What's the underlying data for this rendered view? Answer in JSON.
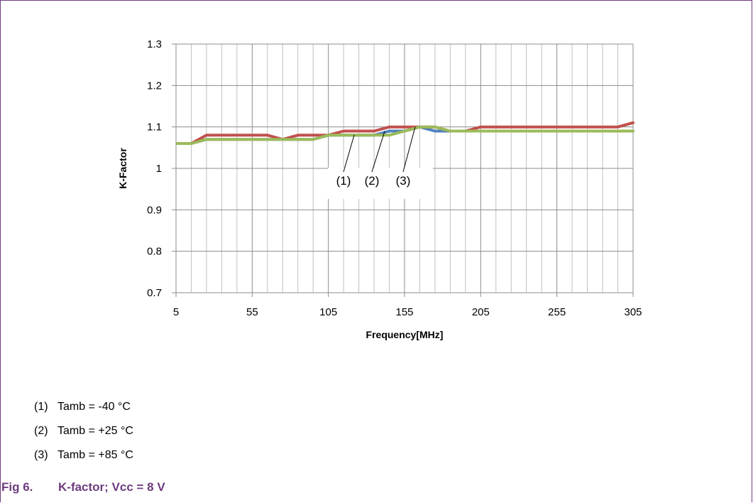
{
  "chart_data": {
    "type": "line",
    "xlabel": "Frequency[MHz]",
    "ylabel": "K-Factor",
    "xlim": [
      5,
      305
    ],
    "ylim": [
      0.7,
      1.3
    ],
    "xticks": [
      5,
      55,
      105,
      155,
      205,
      255,
      305
    ],
    "yticks": [
      0.7,
      0.8,
      0.9,
      1,
      1.1,
      1.2,
      1.3
    ],
    "x_minor_step": 10,
    "grid": true,
    "series": [
      {
        "name": "(1)",
        "color": "#4f81bd",
        "x": [
          5,
          15,
          25,
          35,
          45,
          55,
          65,
          75,
          85,
          95,
          105,
          115,
          125,
          135,
          145,
          155,
          165,
          175,
          185,
          195,
          205,
          215,
          225,
          235,
          245,
          255,
          265,
          275,
          285,
          295,
          305
        ],
        "y": [
          1.06,
          1.06,
          1.07,
          1.07,
          1.07,
          1.07,
          1.07,
          1.07,
          1.07,
          1.07,
          1.08,
          1.08,
          1.08,
          1.08,
          1.09,
          1.09,
          1.1,
          1.09,
          1.09,
          1.09,
          1.09,
          1.09,
          1.09,
          1.09,
          1.09,
          1.09,
          1.09,
          1.09,
          1.09,
          1.09,
          1.09
        ]
      },
      {
        "name": "(2)",
        "color": "#c0504d",
        "x": [
          5,
          15,
          25,
          35,
          45,
          55,
          65,
          75,
          85,
          95,
          105,
          115,
          125,
          135,
          145,
          155,
          165,
          175,
          185,
          195,
          205,
          215,
          225,
          235,
          245,
          255,
          265,
          275,
          285,
          295,
          305
        ],
        "y": [
          1.06,
          1.06,
          1.08,
          1.08,
          1.08,
          1.08,
          1.08,
          1.07,
          1.08,
          1.08,
          1.08,
          1.09,
          1.09,
          1.09,
          1.1,
          1.1,
          1.1,
          1.1,
          1.09,
          1.09,
          1.1,
          1.1,
          1.1,
          1.1,
          1.1,
          1.1,
          1.1,
          1.1,
          1.1,
          1.1,
          1.11
        ]
      },
      {
        "name": "(3)",
        "color": "#9bbb59",
        "x": [
          5,
          15,
          25,
          35,
          45,
          55,
          65,
          75,
          85,
          95,
          105,
          115,
          125,
          135,
          145,
          155,
          165,
          175,
          185,
          195,
          205,
          215,
          225,
          235,
          245,
          255,
          265,
          275,
          285,
          295,
          305
        ],
        "y": [
          1.06,
          1.06,
          1.07,
          1.07,
          1.07,
          1.07,
          1.07,
          1.07,
          1.07,
          1.07,
          1.08,
          1.08,
          1.08,
          1.08,
          1.08,
          1.09,
          1.1,
          1.1,
          1.09,
          1.09,
          1.09,
          1.09,
          1.09,
          1.09,
          1.09,
          1.09,
          1.09,
          1.09,
          1.09,
          1.09,
          1.09
        ]
      }
    ],
    "annotations": [
      {
        "label": "(1)",
        "x": 122,
        "y": 1.081
      },
      {
        "label": "(2)",
        "x": 142,
        "y": 1.09
      },
      {
        "label": "(3)",
        "x": 162,
        "y": 1.1
      }
    ]
  },
  "legend": [
    {
      "num": "(1)",
      "text": "Tamb = -40 °C"
    },
    {
      "num": "(2)",
      "text": "Tamb = +25 °C"
    },
    {
      "num": "(3)",
      "text": "Tamb = +85 °C"
    }
  ],
  "caption": {
    "number": "Fig 6.",
    "text": "K-factor; Vcc = 8 V"
  }
}
